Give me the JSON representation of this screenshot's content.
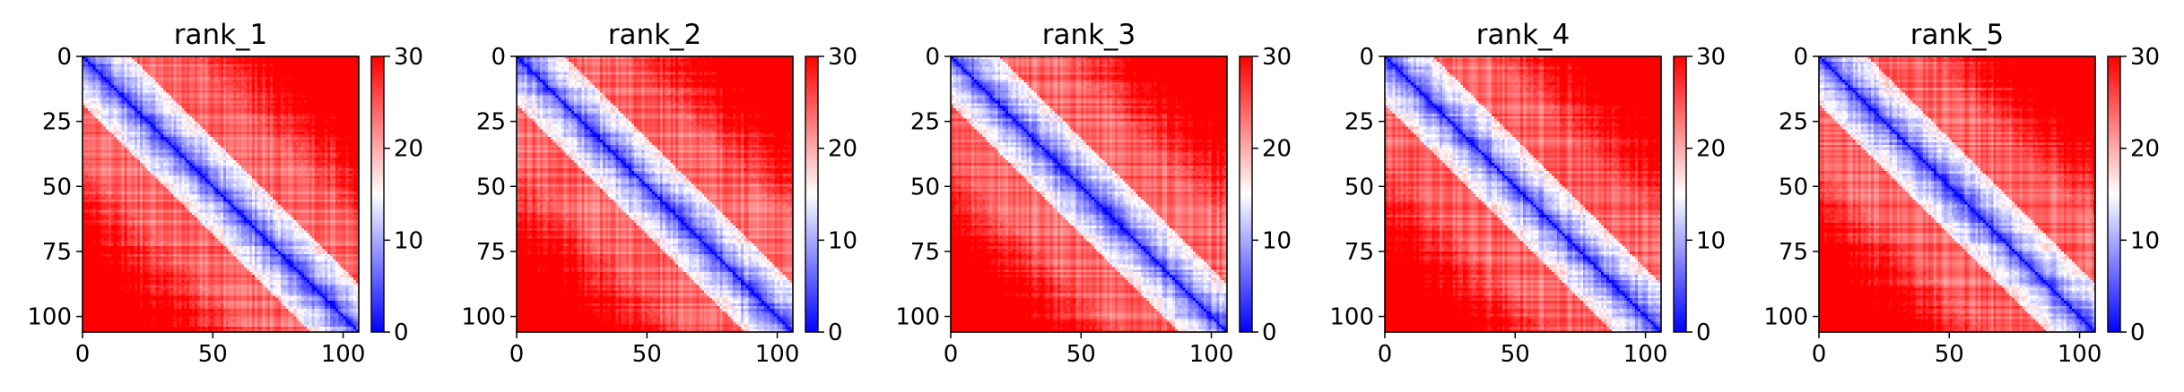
{
  "colors": {
    "low": "#0000ff",
    "mid": "#ffffff",
    "high": "#ff0000"
  },
  "chart_data": [
    {
      "type": "heatmap",
      "title": "rank_1",
      "size": 106,
      "band_width": 4.2,
      "texture_seed": 11,
      "xlim": [
        0,
        106
      ],
      "ylim": [
        106,
        0
      ],
      "xticks": [
        0,
        50,
        100
      ],
      "yticks": [
        0,
        25,
        50,
        75,
        100
      ],
      "colorbar": {
        "range": [
          0,
          30
        ],
        "ticks": [
          0,
          10,
          20,
          30
        ],
        "colormap": "bwr"
      }
    },
    {
      "type": "heatmap",
      "title": "rank_2",
      "size": 106,
      "band_width": 4.0,
      "texture_seed": 23,
      "xlim": [
        0,
        106
      ],
      "ylim": [
        106,
        0
      ],
      "xticks": [
        0,
        50,
        100
      ],
      "yticks": [
        0,
        25,
        50,
        75,
        100
      ],
      "colorbar": {
        "range": [
          0,
          30
        ],
        "ticks": [
          0,
          10,
          20,
          30
        ],
        "colormap": "bwr"
      }
    },
    {
      "type": "heatmap",
      "title": "rank_3",
      "size": 106,
      "band_width": 4.4,
      "texture_seed": 37,
      "xlim": [
        0,
        106
      ],
      "ylim": [
        106,
        0
      ],
      "xticks": [
        0,
        50,
        100
      ],
      "yticks": [
        0,
        25,
        50,
        75,
        100
      ],
      "colorbar": {
        "range": [
          0,
          30
        ],
        "ticks": [
          0,
          10,
          20,
          30
        ],
        "colormap": "bwr"
      }
    },
    {
      "type": "heatmap",
      "title": "rank_4",
      "size": 106,
      "band_width": 4.1,
      "texture_seed": 49,
      "xlim": [
        0,
        106
      ],
      "ylim": [
        106,
        0
      ],
      "xticks": [
        0,
        50,
        100
      ],
      "yticks": [
        0,
        25,
        50,
        75,
        100
      ],
      "colorbar": {
        "range": [
          0,
          30
        ],
        "ticks": [
          0,
          10,
          20,
          30
        ],
        "colormap": "bwr"
      }
    },
    {
      "type": "heatmap",
      "title": "rank_5",
      "size": 106,
      "band_width": 4.3,
      "texture_seed": 61,
      "xlim": [
        0,
        106
      ],
      "ylim": [
        106,
        0
      ],
      "xticks": [
        0,
        50,
        100
      ],
      "yticks": [
        0,
        25,
        50,
        75,
        100
      ],
      "colorbar": {
        "range": [
          0,
          30
        ],
        "ticks": [
          0,
          10,
          20,
          30
        ],
        "colormap": "bwr"
      }
    }
  ]
}
